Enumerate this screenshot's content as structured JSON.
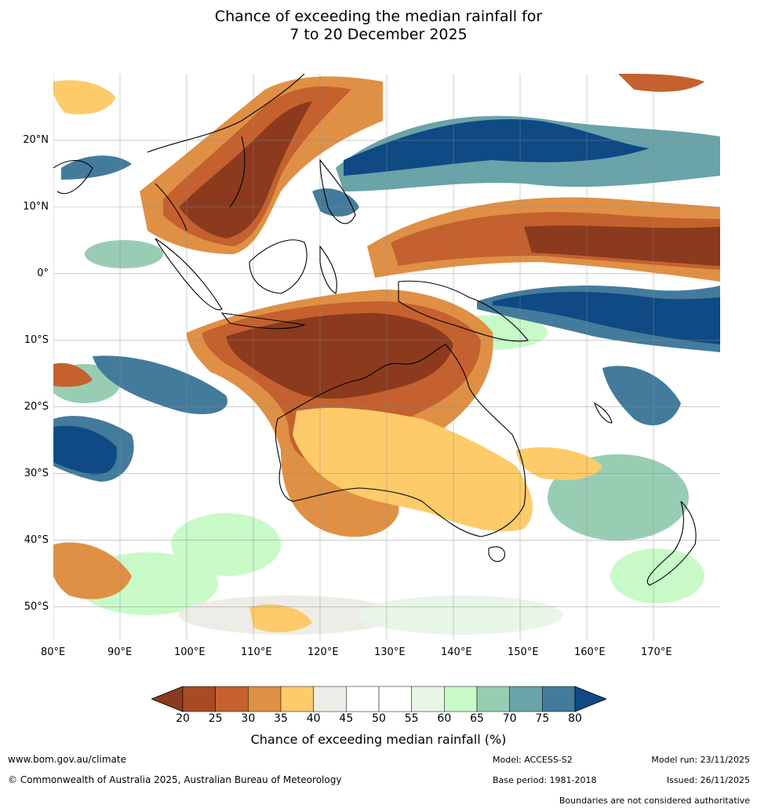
{
  "title": {
    "line1": "Chance of exceeding the median rainfall for",
    "line2": "7 to 20 December 2025"
  },
  "map": {
    "lon_ticks": [
      "80°E",
      "90°E",
      "100°E",
      "110°E",
      "120°E",
      "130°E",
      "140°E",
      "150°E",
      "160°E",
      "170°E"
    ],
    "lat_ticks": [
      "20°N",
      "10°N",
      "0°",
      "10°S",
      "20°S",
      "30°S",
      "40°S",
      "50°S"
    ],
    "lon_range": [
      80,
      180
    ],
    "lat_range": [
      -55,
      30
    ],
    "colors": {
      "below": "#8b3a1d",
      "20-25": "#a84a24",
      "25-30": "#c5612e",
      "30-35": "#df9045",
      "35-40": "#fdcb6a",
      "40-45": "#eeece6",
      "45-55": "#ffffff",
      "55-60": "#e8f6e8",
      "60-65": "#c8fac8",
      "65-70": "#98cdb4",
      "70-75": "#6aa3a8",
      "75-80": "#437b9c",
      "above": "#0f4a85"
    }
  },
  "colorbar": {
    "labels": [
      "20",
      "25",
      "30",
      "35",
      "40",
      "45",
      "50",
      "55",
      "60",
      "65",
      "70",
      "75",
      "80"
    ],
    "bands": [
      "#a84a24",
      "#c5612e",
      "#df9045",
      "#fdcb6a",
      "#eeece6",
      "#ffffff",
      "#ffffff",
      "#e8f6e8",
      "#c8fac8",
      "#98cdb4",
      "#6aa3a8",
      "#437b9c"
    ],
    "low_extend_color": "#8b3a1d",
    "high_extend_color": "#0f4a85",
    "title": "Chance of exceeding median rainfall (%)"
  },
  "footer": {
    "website": "www.bom.gov.au/climate",
    "copyright": "© Commonwealth of Australia 2025, Australian Bureau of Meteorology",
    "model": "Model: ACCESS-S2",
    "base_period": "Base period: 1981-2018",
    "model_run": "Model run: 23/11/2025",
    "issued": "Issued: 26/11/2025",
    "disclaimer": "Boundaries are not considered authoritative"
  }
}
